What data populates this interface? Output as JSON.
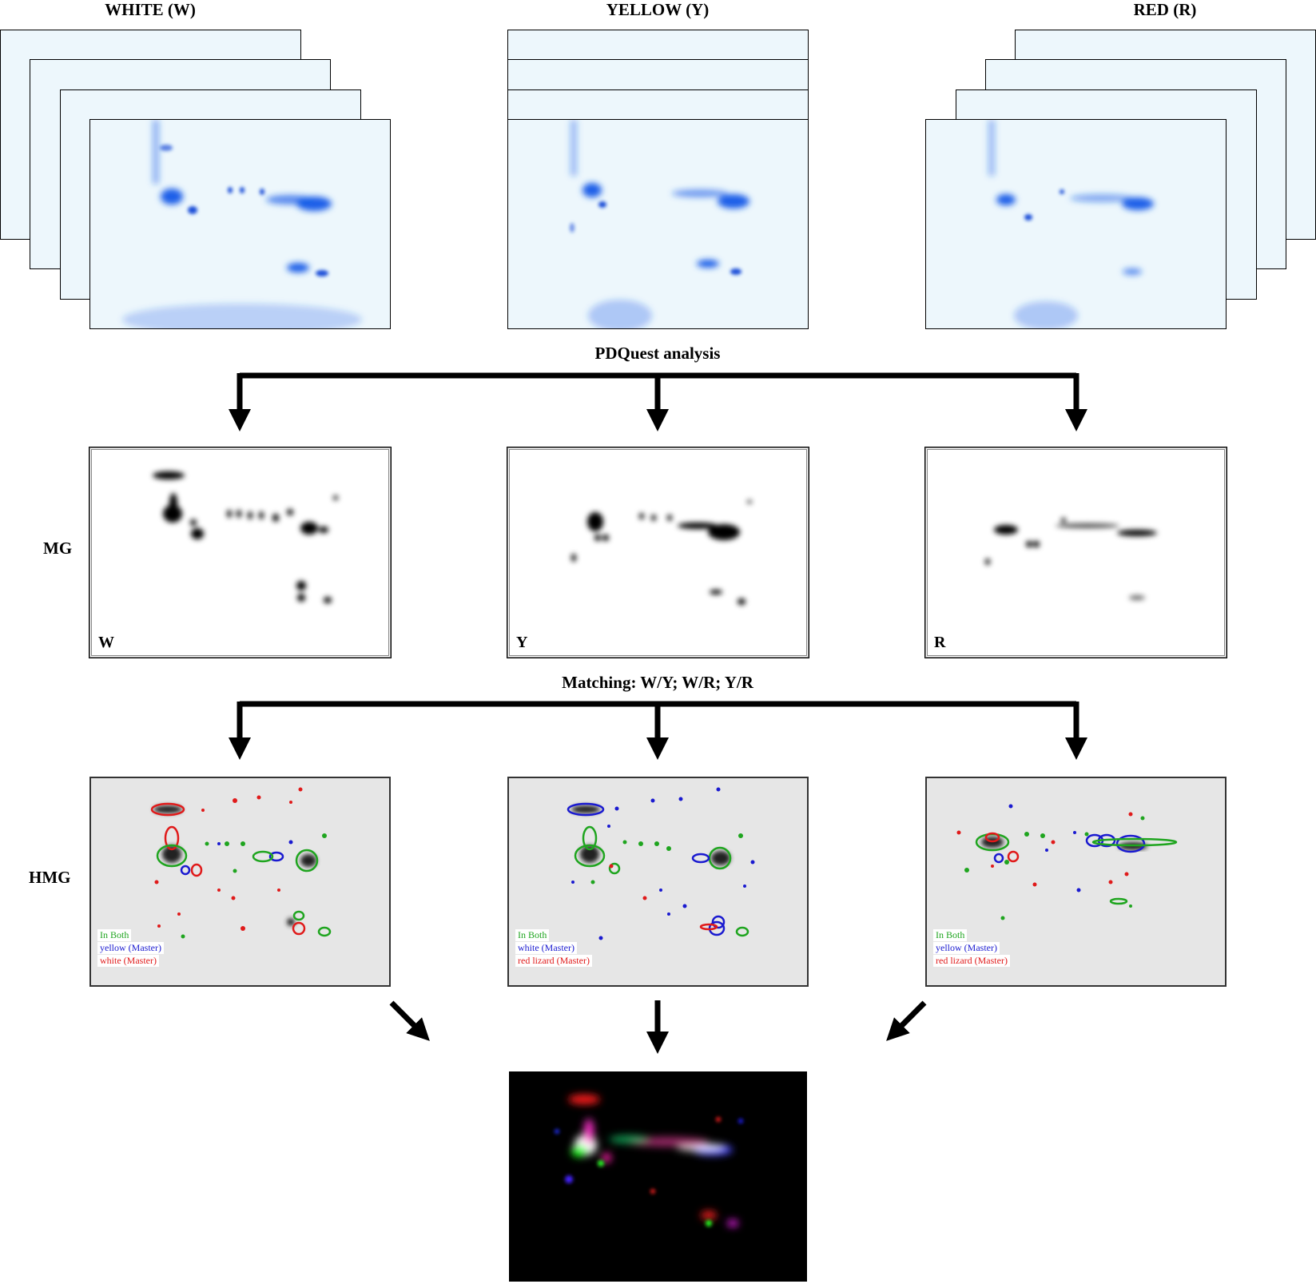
{
  "columns": [
    {
      "title": "WHITE (W)"
    },
    {
      "title": "YELLOW (Y)"
    },
    {
      "title": "RED (R)"
    }
  ],
  "steps": {
    "analysis": "PDQuest analysis",
    "matching": "Matching: W/Y; W/R; Y/R"
  },
  "rows": {
    "mg": "MG",
    "hmg": "HMG"
  },
  "mg_panels": [
    {
      "letter": "W"
    },
    {
      "letter": "Y"
    },
    {
      "letter": "R"
    }
  ],
  "hmg_panels": [
    {
      "legend": [
        "In Both",
        "yellow (Master)",
        "white (Master)"
      ]
    },
    {
      "legend": [
        "In Both",
        "white (Master)",
        "red lizard (Master)"
      ]
    },
    {
      "legend": [
        "In Both",
        "yellow (Master)",
        "red lizard (Master)"
      ]
    }
  ],
  "colors": {
    "in_both": "#1fa51f",
    "yellow_master": "#1a1ad0",
    "white_master": "#e01a1a",
    "gel_stain": "#1a5ee8",
    "arrow": "#000000"
  }
}
